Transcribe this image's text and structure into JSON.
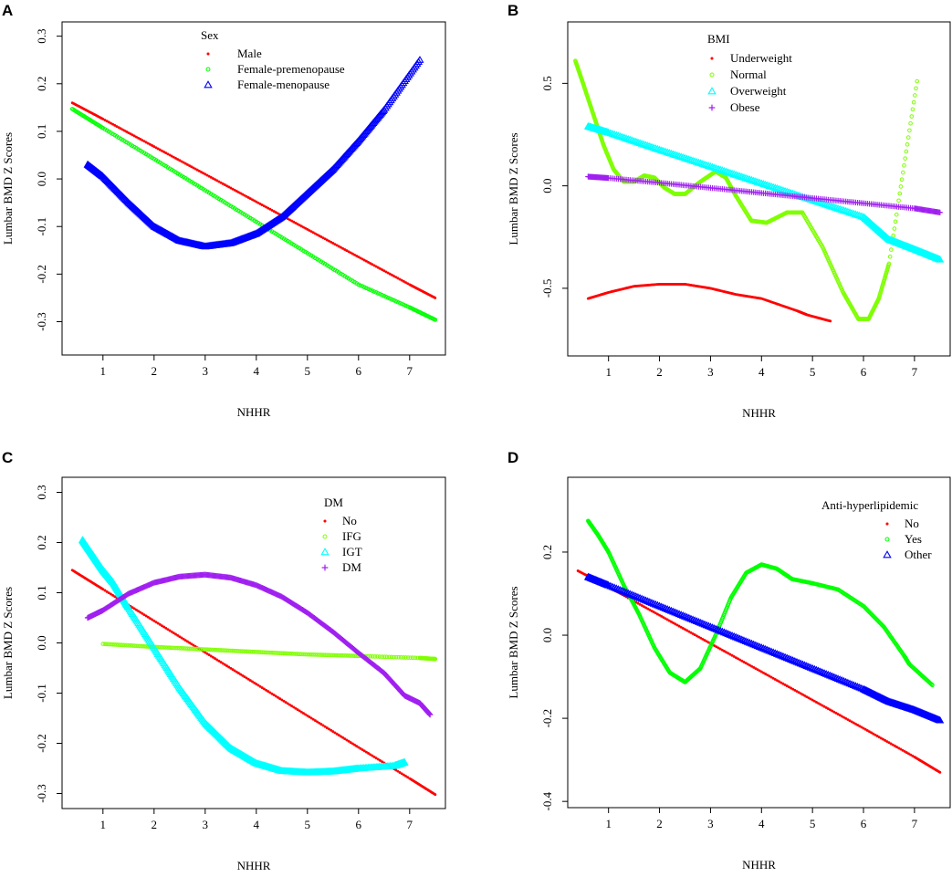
{
  "chart_data": [
    {
      "panel": "A",
      "type": "scatter",
      "xlabel": "NHHR",
      "ylabel": "Lumbar BMD Z Scores",
      "xlim": [
        0.2,
        7.7
      ],
      "ylim": [
        -0.37,
        0.33
      ],
      "xticks": [
        1,
        2,
        3,
        4,
        5,
        6,
        7
      ],
      "yticks": [
        -0.3,
        -0.2,
        -0.1,
        0.0,
        0.1,
        0.2,
        0.3
      ],
      "ytick_labels": [
        "-0.3",
        "-0.2",
        "-0.1",
        "0.0",
        "0.1",
        "0.2",
        "0.3"
      ],
      "legend_title": "Sex",
      "series": [
        {
          "name": "Male",
          "color": "#ff0000",
          "marker": "dot",
          "points": [
            [
              0.4,
              0.16
            ],
            [
              1,
              0.126
            ],
            [
              2,
              0.068
            ],
            [
              3,
              0.01
            ],
            [
              4,
              -0.048
            ],
            [
              5,
              -0.106
            ],
            [
              6,
              -0.164
            ],
            [
              7,
              -0.222
            ],
            [
              7.5,
              -0.25
            ]
          ]
        },
        {
          "name": "Female-premenopause",
          "color": "#00ff00",
          "marker": "circle",
          "points": [
            [
              0.4,
              0.147
            ],
            [
              1,
              0.107
            ],
            [
              2,
              0.042
            ],
            [
              3,
              -0.024
            ],
            [
              4,
              -0.09
            ],
            [
              5,
              -0.156
            ],
            [
              6,
              -0.222
            ],
            [
              7,
              -0.27
            ],
            [
              7.5,
              -0.296
            ]
          ]
        },
        {
          "name": "Female-menopause",
          "color": "#0000ff",
          "marker": "triangle",
          "points": [
            [
              0.7,
              0.03
            ],
            [
              1,
              0.005
            ],
            [
              1.5,
              -0.05
            ],
            [
              2,
              -0.1
            ],
            [
              2.5,
              -0.13
            ],
            [
              3,
              -0.142
            ],
            [
              3.5,
              -0.135
            ],
            [
              4,
              -0.115
            ],
            [
              4.5,
              -0.08
            ],
            [
              5,
              -0.03
            ],
            [
              5.5,
              0.02
            ],
            [
              6,
              0.08
            ],
            [
              6.5,
              0.145
            ],
            [
              7.2,
              0.25
            ]
          ]
        }
      ]
    },
    {
      "panel": "B",
      "type": "scatter",
      "xlabel": "NHHR",
      "ylabel": "Lumbar BMD Z Scores",
      "xlim": [
        0.2,
        7.7
      ],
      "ylim": [
        -0.83,
        0.8
      ],
      "xticks": [
        1,
        2,
        3,
        4,
        5,
        6,
        7
      ],
      "yticks": [
        -0.5,
        0.0,
        0.5
      ],
      "ytick_labels": [
        "-0.5",
        "0.0",
        "0.5"
      ],
      "legend_title": "BMI",
      "series": [
        {
          "name": "Underweight",
          "color": "#ff0000",
          "marker": "dot",
          "points": [
            [
              0.6,
              -0.55
            ],
            [
              1,
              -0.52
            ],
            [
              1.5,
              -0.49
            ],
            [
              2,
              -0.48
            ],
            [
              2.5,
              -0.48
            ],
            [
              3,
              -0.5
            ],
            [
              3.5,
              -0.53
            ],
            [
              4,
              -0.55
            ],
            [
              4.7,
              -0.61
            ],
            [
              4.9,
              -0.63
            ],
            [
              5.35,
              -0.66
            ]
          ]
        },
        {
          "name": "Normal",
          "color": "#7fff00",
          "marker": "circle",
          "points": [
            [
              0.35,
              0.61
            ],
            [
              0.5,
              0.5
            ],
            [
              0.7,
              0.35
            ],
            [
              0.9,
              0.2
            ],
            [
              1.1,
              0.08
            ],
            [
              1.3,
              0.02
            ],
            [
              1.5,
              0.02
            ],
            [
              1.7,
              0.05
            ],
            [
              1.9,
              0.04
            ],
            [
              2.1,
              -0.01
            ],
            [
              2.3,
              -0.04
            ],
            [
              2.5,
              -0.04
            ],
            [
              2.8,
              0.02
            ],
            [
              3.1,
              0.07
            ],
            [
              3.3,
              0.04
            ],
            [
              3.5,
              -0.05
            ],
            [
              3.8,
              -0.17
            ],
            [
              4.1,
              -0.18
            ],
            [
              4.5,
              -0.13
            ],
            [
              4.8,
              -0.13
            ],
            [
              5.2,
              -0.3
            ],
            [
              5.6,
              -0.52
            ],
            [
              5.9,
              -0.65
            ],
            [
              6.1,
              -0.65
            ],
            [
              6.3,
              -0.55
            ],
            [
              6.5,
              -0.38
            ],
            [
              7.05,
              0.51
            ]
          ]
        },
        {
          "name": "Overweight",
          "color": "#00ffff",
          "marker": "triangle",
          "points": [
            [
              0.6,
              0.29
            ],
            [
              1,
              0.26
            ],
            [
              2,
              0.176
            ],
            [
              3,
              0.094
            ],
            [
              4,
              0.012
            ],
            [
              5,
              -0.07
            ],
            [
              6,
              -0.152
            ],
            [
              6.5,
              -0.262
            ],
            [
              7,
              -0.31
            ],
            [
              7.5,
              -0.36
            ]
          ]
        },
        {
          "name": "Obese",
          "color": "#a020f0",
          "marker": "plus",
          "points": [
            [
              0.6,
              0.045
            ],
            [
              1,
              0.038
            ],
            [
              2,
              0.015
            ],
            [
              3,
              -0.01
            ],
            [
              4,
              -0.035
            ],
            [
              5,
              -0.06
            ],
            [
              6,
              -0.085
            ],
            [
              7,
              -0.11
            ],
            [
              7.5,
              -0.13
            ]
          ]
        }
      ]
    },
    {
      "panel": "C",
      "type": "scatter",
      "xlabel": "NHHR",
      "ylabel": "Lumbar BMD Z Scores",
      "xlim": [
        0.2,
        7.7
      ],
      "ylim": [
        -0.33,
        0.33
      ],
      "xticks": [
        1,
        2,
        3,
        4,
        5,
        6,
        7
      ],
      "yticks": [
        -0.3,
        -0.2,
        -0.1,
        0.0,
        0.1,
        0.2,
        0.3
      ],
      "ytick_labels": [
        "-0.3",
        "-0.2",
        "-0.1",
        "0.0",
        "0.1",
        "0.2",
        "0.3"
      ],
      "legend_title": "DM",
      "series": [
        {
          "name": "No",
          "color": "#ff0000",
          "marker": "dot",
          "points": [
            [
              0.4,
              0.145
            ],
            [
              1,
              0.107
            ],
            [
              2,
              0.044
            ],
            [
              3,
              -0.019
            ],
            [
              4,
              -0.082
            ],
            [
              5,
              -0.145
            ],
            [
              6,
              -0.208
            ],
            [
              7,
              -0.27
            ],
            [
              7.5,
              -0.302
            ]
          ]
        },
        {
          "name": "IFG",
          "color": "#7fff00",
          "marker": "circle",
          "points": [
            [
              1,
              -0.002
            ],
            [
              2,
              -0.008
            ],
            [
              3,
              -0.013
            ],
            [
              4,
              -0.018
            ],
            [
              5,
              -0.023
            ],
            [
              6,
              -0.026
            ],
            [
              7.2,
              -0.03
            ],
            [
              7.5,
              -0.032
            ]
          ]
        },
        {
          "name": "IGT",
          "color": "#00ffff",
          "marker": "triangle",
          "points": [
            [
              0.6,
              0.205
            ],
            [
              0.8,
              0.175
            ],
            [
              1,
              0.145
            ],
            [
              1.2,
              0.12
            ],
            [
              1.5,
              0.07
            ],
            [
              2,
              -0.01
            ],
            [
              2.5,
              -0.09
            ],
            [
              3,
              -0.16
            ],
            [
              3.5,
              -0.21
            ],
            [
              4,
              -0.24
            ],
            [
              4.5,
              -0.255
            ],
            [
              5,
              -0.258
            ],
            [
              5.5,
              -0.256
            ],
            [
              6,
              -0.25
            ],
            [
              6.7,
              -0.245
            ],
            [
              6.9,
              -0.238
            ]
          ]
        },
        {
          "name": "DM",
          "color": "#a020f0",
          "marker": "plus",
          "points": [
            [
              0.7,
              0.05
            ],
            [
              1,
              0.065
            ],
            [
              1.5,
              0.098
            ],
            [
              2,
              0.12
            ],
            [
              2.5,
              0.132
            ],
            [
              3,
              0.136
            ],
            [
              3.5,
              0.13
            ],
            [
              4,
              0.115
            ],
            [
              4.5,
              0.092
            ],
            [
              5,
              0.06
            ],
            [
              5.5,
              0.022
            ],
            [
              6,
              -0.02
            ],
            [
              6.5,
              -0.06
            ],
            [
              6.9,
              -0.105
            ],
            [
              7.2,
              -0.12
            ],
            [
              7.4,
              -0.143
            ]
          ]
        }
      ]
    },
    {
      "panel": "D",
      "type": "scatter",
      "xlabel": "NHHR",
      "ylabel": "Lumbar BMD Z Scores",
      "xlim": [
        0.2,
        7.7
      ],
      "ylim": [
        -0.415,
        0.38
      ],
      "xticks": [
        1,
        2,
        3,
        4,
        5,
        6,
        7
      ],
      "yticks": [
        -0.4,
        -0.2,
        0.0,
        0.2
      ],
      "ytick_labels": [
        "-0.4",
        "-0.2",
        "0.0",
        "0.2"
      ],
      "legend_title": "Anti-hyperlipidemic",
      "series": [
        {
          "name": "No",
          "color": "#ff0000",
          "marker": "dot",
          "points": [
            [
              0.4,
              0.155
            ],
            [
              1,
              0.116
            ],
            [
              2,
              0.048
            ],
            [
              3,
              -0.02
            ],
            [
              4,
              -0.088
            ],
            [
              5,
              -0.156
            ],
            [
              6,
              -0.224
            ],
            [
              7,
              -0.293
            ],
            [
              7.5,
              -0.33
            ]
          ]
        },
        {
          "name": "Yes",
          "color": "#00ff00",
          "marker": "circle",
          "points": [
            [
              0.6,
              0.275
            ],
            [
              0.8,
              0.24
            ],
            [
              1,
              0.2
            ],
            [
              1.3,
              0.12
            ],
            [
              1.6,
              0.05
            ],
            [
              1.9,
              -0.03
            ],
            [
              2.2,
              -0.09
            ],
            [
              2.5,
              -0.113
            ],
            [
              2.8,
              -0.08
            ],
            [
              3.1,
              0.0
            ],
            [
              3.4,
              0.09
            ],
            [
              3.7,
              0.15
            ],
            [
              4,
              0.17
            ],
            [
              4.3,
              0.16
            ],
            [
              4.6,
              0.135
            ],
            [
              5,
              0.125
            ],
            [
              5.5,
              0.11
            ],
            [
              6,
              0.07
            ],
            [
              6.4,
              0.02
            ],
            [
              6.8,
              -0.05
            ],
            [
              6.9,
              -0.07
            ],
            [
              7.35,
              -0.12
            ]
          ]
        },
        {
          "name": "Other",
          "color": "#0000ff",
          "marker": "triangle",
          "points": [
            [
              0.6,
              0.14
            ],
            [
              1,
              0.12
            ],
            [
              2,
              0.07
            ],
            [
              3,
              0.02
            ],
            [
              4,
              -0.03
            ],
            [
              5,
              -0.08
            ],
            [
              6,
              -0.13
            ],
            [
              6.5,
              -0.16
            ],
            [
              7,
              -0.18
            ],
            [
              7.5,
              -0.205
            ]
          ]
        }
      ]
    }
  ]
}
